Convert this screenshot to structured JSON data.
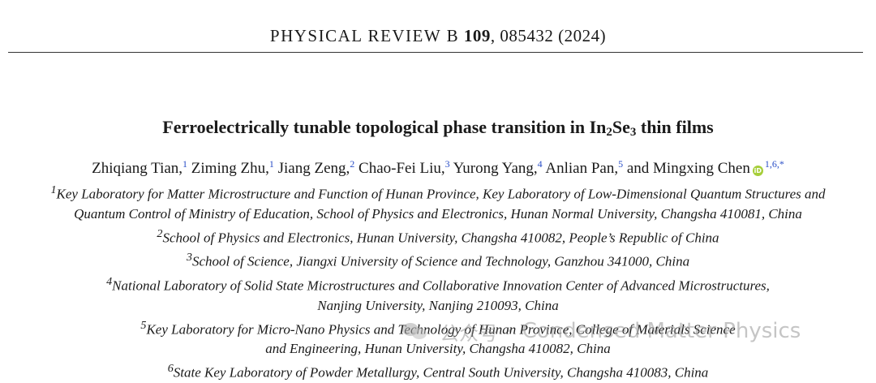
{
  "header": {
    "journal": "PHYSICAL REVIEW B",
    "volume": "109",
    "article": ", 085432 (2024)"
  },
  "title": {
    "prefix": "Ferroelectrically tunable topological phase transition in In",
    "sub1": "2",
    "mid": "Se",
    "sub2": "3",
    "suffix": " thin films"
  },
  "authors": [
    {
      "name": "Zhiqiang Tian,",
      "sup": "1"
    },
    {
      "name": "Ziming Zhu,",
      "sup": "1"
    },
    {
      "name": "Jiang Zeng,",
      "sup": "2"
    },
    {
      "name": "Chao-Fei Liu,",
      "sup": "3"
    },
    {
      "name": "Yurong Yang,",
      "sup": "4"
    },
    {
      "name": "Anlian Pan,",
      "sup": "5"
    },
    {
      "name": "and Mingxing Chen",
      "sup": "1,6,*"
    }
  ],
  "orcid_label": "iD",
  "affiliations": [
    {
      "sup": "1",
      "lines": [
        "Key Laboratory for Matter Microstructure and Function of Hunan Province, Key Laboratory of Low-Dimensional Quantum Structures and",
        "Quantum Control of Ministry of Education, School of Physics and Electronics, Hunan Normal University, Changsha 410081, China"
      ]
    },
    {
      "sup": "2",
      "lines": [
        "School of Physics and Electronics, Hunan University, Changsha 410082, People’s Republic of China"
      ]
    },
    {
      "sup": "3",
      "lines": [
        "School of Science, Jiangxi University of Science and Technology, Ganzhou 341000, China"
      ]
    },
    {
      "sup": "4",
      "lines": [
        "National Laboratory of Solid State Microstructures and Collaborative Innovation Center of Advanced Microstructures,",
        "Nanjing University, Nanjing 210093, China"
      ]
    },
    {
      "sup": "5",
      "lines": [
        "Key Laboratory for Micro-Nano Physics and Technology of Hunan Province, College of Materials Science",
        "and Engineering, Hunan University, Changsha 410082, China"
      ]
    },
    {
      "sup": "6",
      "lines": [
        "State Key Laboratory of Powder Metallurgy, Central South University, Changsha 410083, China"
      ]
    }
  ],
  "watermark": {
    "label": "公众号",
    "separator": "·",
    "text": "Condensed Matter Physics",
    "icon": "wechat-icon"
  }
}
